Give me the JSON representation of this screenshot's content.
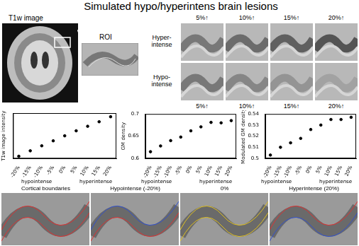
{
  "header": {
    "title": "Simulated hypo/hyperintens brain lesions"
  },
  "panels": {
    "t1w_label": "T1w image",
    "roi_label": "ROI",
    "row_labels": [
      "Hyper-intense",
      "Hypo-intense"
    ],
    "column_labels": [
      "5%↑",
      "10%↑",
      "15%↑",
      "20%↑"
    ],
    "bottom_labels": [
      "Cortical boundaries",
      "Hypointense (-20%)",
      "0%",
      "Hyperintense (20%)"
    ]
  },
  "chart_data": [
    {
      "type": "scatter",
      "ylabel": "T1w image intensity",
      "categories": [
        "-20%",
        "-15%",
        "-10%",
        "-5%",
        "0%",
        "5%",
        "10%",
        "15%",
        "20%"
      ],
      "values": [
        5,
        17,
        28,
        39,
        50,
        61,
        71,
        81,
        92
      ],
      "x_annotations": [
        "hypointense",
        "hyperintense"
      ],
      "ylim": [
        0,
        100
      ],
      "tick_labels": "x",
      "grid": false,
      "color": "#000000",
      "marker": "circle"
    },
    {
      "type": "scatter",
      "ylabel": "GM density",
      "categories": [
        "-20%",
        "-15%",
        "-10%",
        "-5%",
        "0%",
        "5%",
        "10%",
        "15%",
        "20%"
      ],
      "values": [
        0.615,
        0.628,
        0.64,
        0.648,
        0.662,
        0.671,
        0.681,
        0.68,
        0.685
      ],
      "x_annotations": [
        "hypointense",
        "hyperintense"
      ],
      "ylim": [
        0.6,
        0.7
      ],
      "yticks": [
        0.6,
        0.65,
        0.7
      ],
      "grid": false,
      "color": "#000000",
      "marker": "circle"
    },
    {
      "type": "scatter",
      "ylabel": "Modulated GM density",
      "categories": [
        "-20%",
        "-15%",
        "-10%",
        "-5%",
        "0%",
        "5%",
        "10%",
        "15%",
        "20%"
      ],
      "values": [
        0.503,
        0.51,
        0.514,
        0.518,
        0.526,
        0.53,
        0.535,
        0.535,
        0.537
      ],
      "x_annotations": [
        "hypointense",
        "hyperintense"
      ],
      "ylim": [
        0.5,
        0.54
      ],
      "yticks": [
        0.5,
        0.51,
        0.52,
        0.53,
        0.54
      ],
      "grid": false,
      "color": "#000000",
      "marker": "circle"
    }
  ]
}
